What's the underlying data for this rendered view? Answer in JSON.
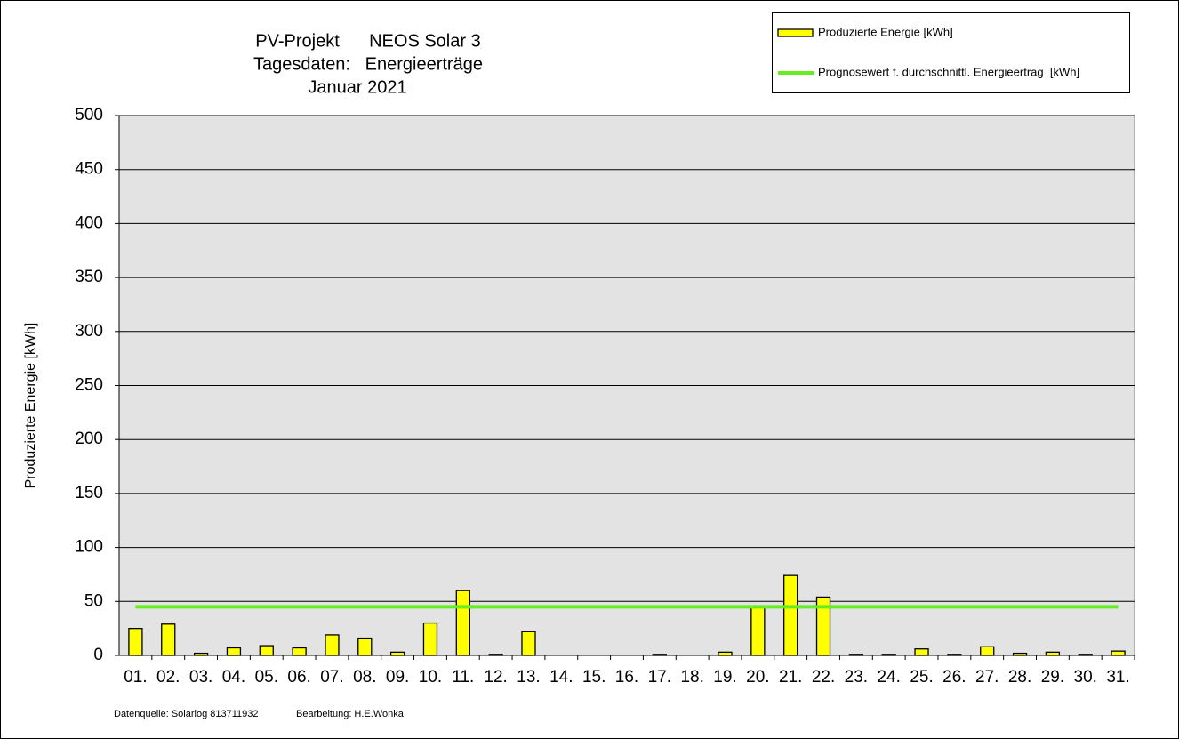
{
  "chart_data": {
    "type": "bar",
    "title": [
      "PV-Projekt      NEOS Solar 3",
      "Tagesdaten:   Energieerträge",
      "Januar 2021"
    ],
    "y_label": "Produzierte Energie [kWh]",
    "footnotes": [
      "Datenquelle: Solarlog 813711932",
      "Bearbeitung: H.E.Wonka"
    ],
    "categories": [
      "01.",
      "02.",
      "03.",
      "04.",
      "05.",
      "06.",
      "07.",
      "08.",
      "09.",
      "10.",
      "11.",
      "12.",
      "13.",
      "14.",
      "15.",
      "16.",
      "17.",
      "18.",
      "19.",
      "20.",
      "21.",
      "22.",
      "23.",
      "24.",
      "25.",
      "26.",
      "27.",
      "28.",
      "29.",
      "30.",
      "31."
    ],
    "series": [
      {
        "name": "Produzierte Energie [kWh]",
        "type": "bar",
        "color": "#ffff00",
        "values": [
          25,
          29,
          2,
          7,
          9,
          7,
          19,
          16,
          3,
          30,
          60,
          1,
          22,
          0,
          0,
          0,
          1,
          0,
          3,
          45,
          74,
          54,
          1,
          1,
          6,
          1,
          8,
          2,
          3,
          1,
          4
        ]
      },
      {
        "name": "Prognosewert f. durchschnittl. Energieertrag  [kWh]",
        "type": "line",
        "color": "#66ee22",
        "values": [
          45,
          45,
          45,
          45,
          45,
          45,
          45,
          45,
          45,
          45,
          45,
          45,
          45,
          45,
          45,
          45,
          45,
          45,
          45,
          45,
          45,
          45,
          45,
          45,
          45,
          45,
          45,
          45,
          45,
          45,
          45
        ]
      }
    ],
    "ylim": [
      0,
      500
    ],
    "yticks": [
      0,
      50,
      100,
      150,
      200,
      250,
      300,
      350,
      400,
      450,
      500
    ],
    "grid": true,
    "legend": "top-right"
  }
}
